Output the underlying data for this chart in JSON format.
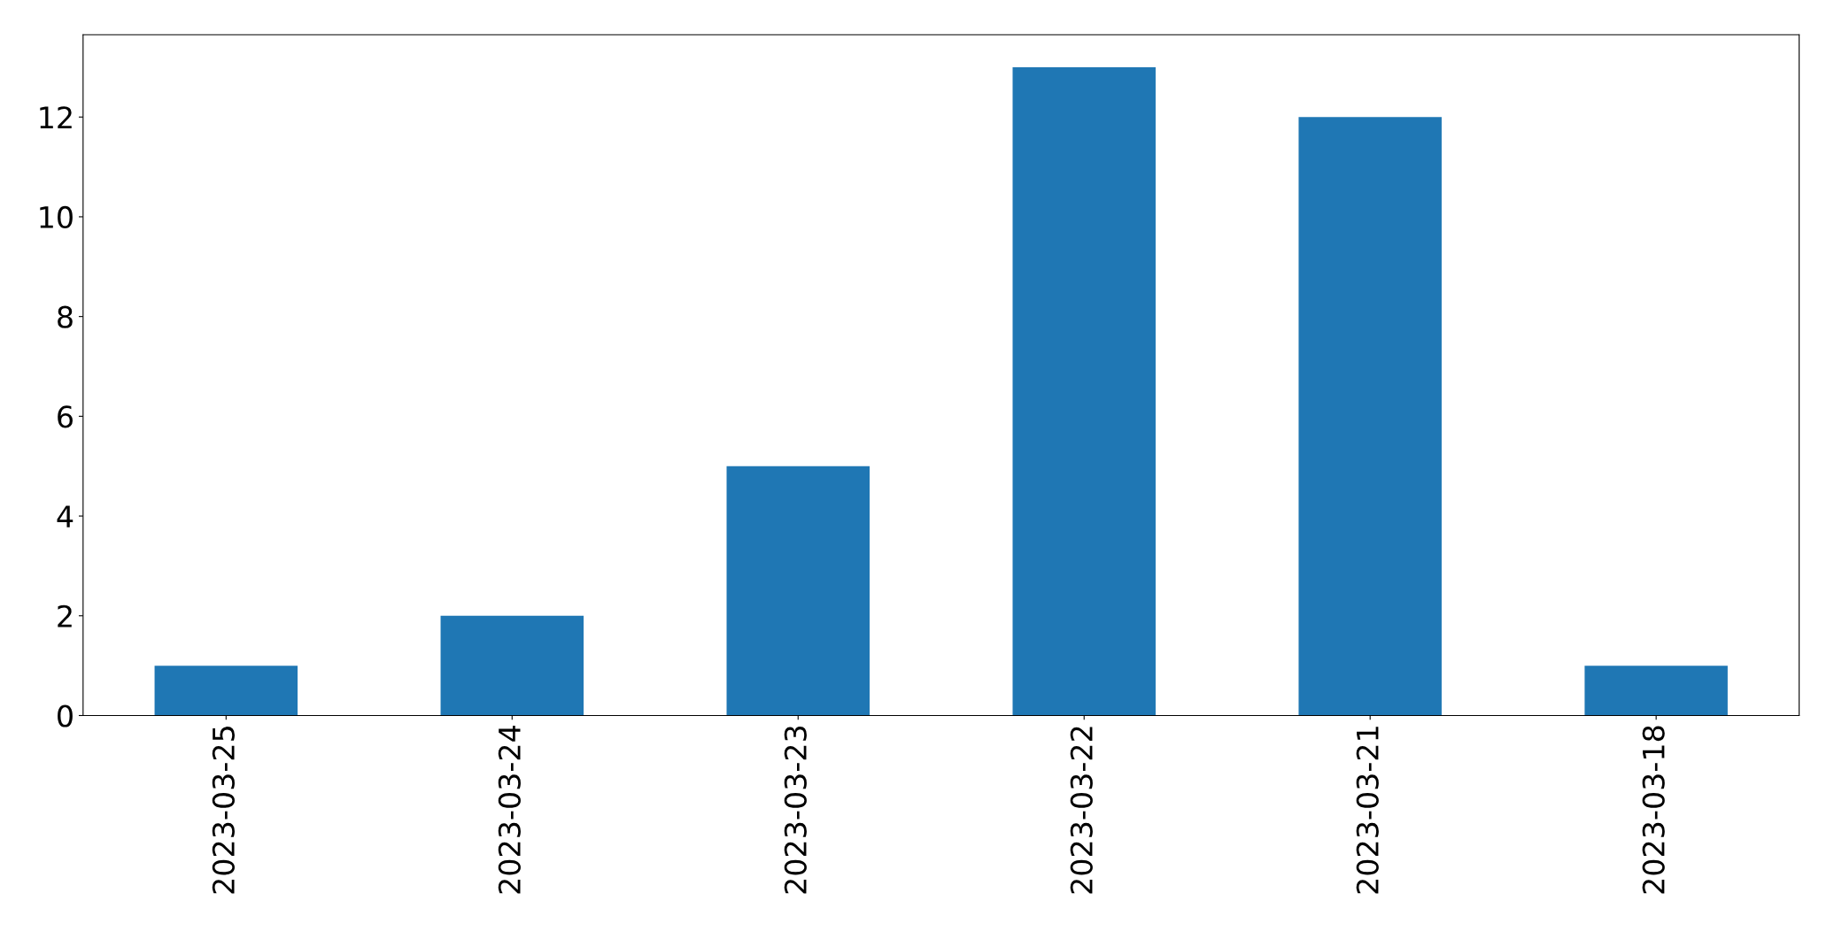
{
  "chart_data": {
    "type": "bar",
    "categories": [
      "2023-03-25",
      "2023-03-24",
      "2023-03-23",
      "2023-03-22",
      "2023-03-21",
      "2023-03-18"
    ],
    "values": [
      1,
      2,
      5,
      13,
      12,
      1
    ],
    "color": "#1f77b4",
    "ylim": [
      0,
      13.65
    ],
    "yticks": [
      0,
      2,
      4,
      6,
      8,
      10,
      12
    ],
    "grid": false,
    "legend": false
  }
}
